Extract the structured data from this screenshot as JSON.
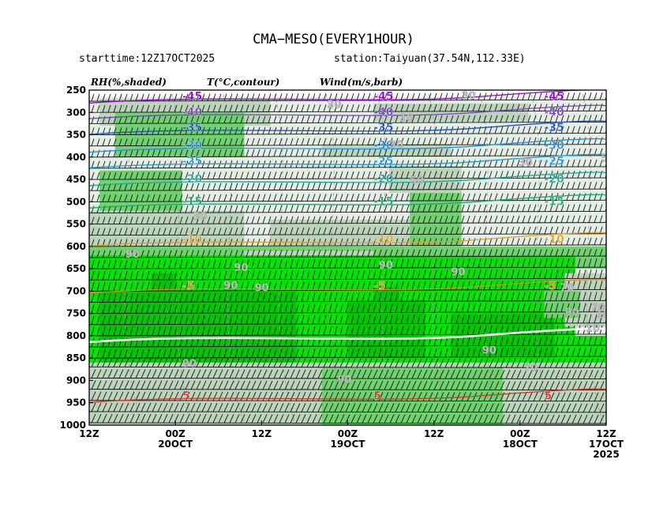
{
  "header": {
    "title": "CMA−MESO(EVERY1HOUR)",
    "starttime": "starttime:12Z17OCT2025",
    "station": "station:Taiyuan(37.54N,112.33E)"
  },
  "variables": {
    "rh": "RH(%,shaded)",
    "temp": "T(°C,contour)",
    "wind": "Wind(m/s,barb)"
  },
  "chart_data": {
    "type": "heatmap",
    "title": "CMA−MESO(EVERY1HOUR)",
    "y_axis": {
      "ticks": [
        "250",
        "300",
        "350",
        "400",
        "450",
        "500",
        "550",
        "600",
        "650",
        "700",
        "750",
        "800",
        "850",
        "900",
        "950",
        "1000"
      ],
      "range": [
        250,
        1000
      ],
      "direction": "inverted (pressure, hPa)"
    },
    "x_axis": {
      "ticks": [
        {
          "line1": "12Z",
          "line2": "",
          "line3": ""
        },
        {
          "line1": "00Z",
          "line2": "20OCT",
          "line3": ""
        },
        {
          "line1": "12Z",
          "line2": "",
          "line3": ""
        },
        {
          "line1": "00Z",
          "line2": "19OCT",
          "line3": ""
        },
        {
          "line1": "12Z",
          "line2": "",
          "line3": ""
        },
        {
          "line1": "00Z",
          "line2": "18OCT",
          "line3": ""
        },
        {
          "line1": "12Z",
          "line2": "17OCT",
          "line3": "2025"
        }
      ],
      "direction": "time runs right-to-left (20OCT 12Z on left, 17OCT 12Z on right)"
    },
    "rh_shading": {
      "levels": [
        30,
        50,
        70,
        90
      ],
      "colors": [
        "#ffffff",
        "#e4eee4",
        "#bcd3bc",
        "#6fd26f",
        "#00e600",
        "#00c800"
      ]
    },
    "rh_labels": [
      "30",
      "30",
      "30",
      "30",
      "30",
      "50",
      "50",
      "70",
      "70",
      "70",
      "90",
      "90",
      "90",
      "90",
      "90",
      "90",
      "90",
      "90",
      "90",
      "90",
      "10",
      "10",
      "10"
    ],
    "temperature_contours": [
      {
        "value": -45,
        "label": "-45",
        "color": "#9400d3",
        "pressure": 265
      },
      {
        "value": -40,
        "label": "-40",
        "color": "#7b3fbf",
        "pressure": 300
      },
      {
        "value": -35,
        "label": "-35",
        "color": "#1f4fbf",
        "pressure": 335
      },
      {
        "value": -30,
        "label": "-30",
        "color": "#1e90e0",
        "pressure": 375
      },
      {
        "value": -25,
        "label": "-25",
        "color": "#1e9ed8",
        "pressure": 410
      },
      {
        "value": -20,
        "label": "-20",
        "color": "#16a89a",
        "pressure": 450
      },
      {
        "value": -15,
        "label": "-15",
        "color": "#1aa874",
        "pressure": 500
      },
      {
        "value": -10,
        "label": "-10",
        "color": "#d9a030",
        "pressure": 585
      },
      {
        "value": -5,
        "label": "-5",
        "color": "#e08a1e",
        "pressure": 690
      },
      {
        "value": 0,
        "label": "",
        "color": "#ffffff",
        "pressure": 800
      },
      {
        "value": 5,
        "label": "5",
        "color": "#d83030",
        "pressure": 935
      }
    ],
    "wind_barbs": "barbs at every hour along each pressure level, predominantly westerly"
  }
}
